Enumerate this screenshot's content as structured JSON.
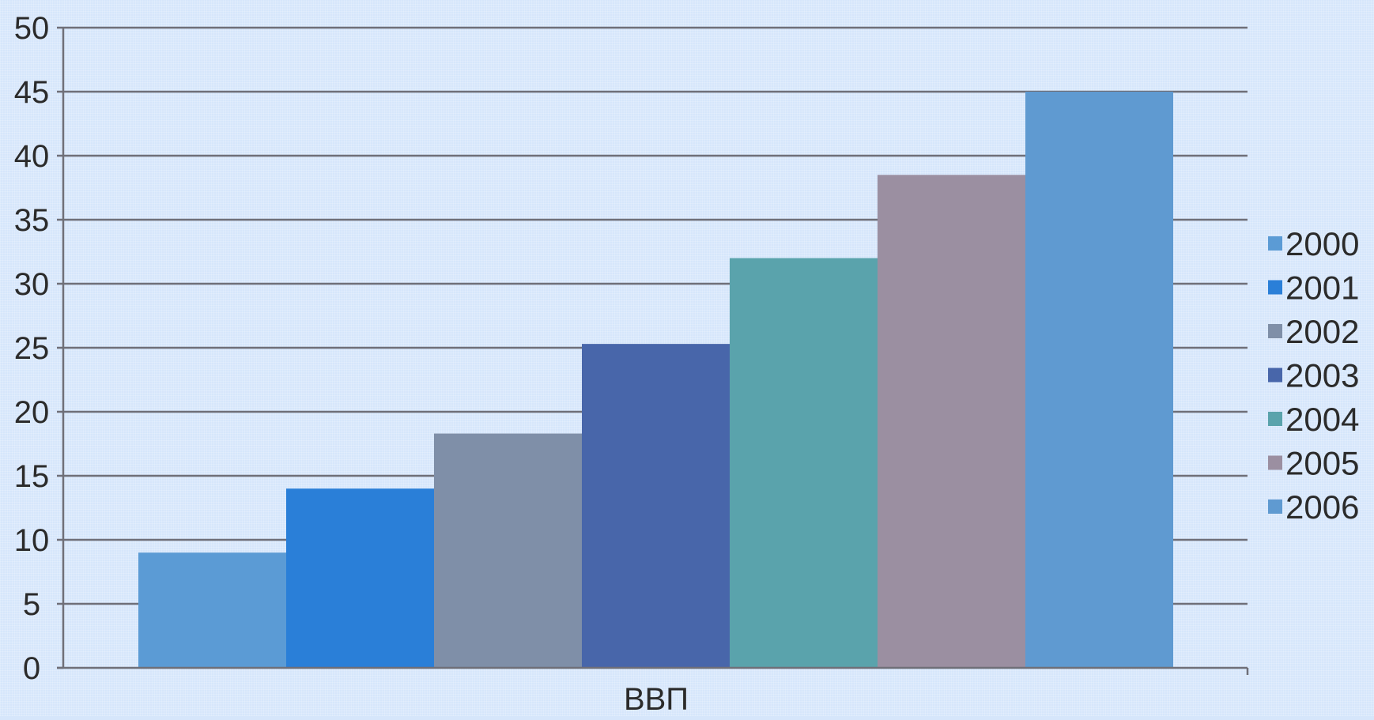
{
  "chart_data": {
    "type": "bar",
    "title": "",
    "xlabel": "",
    "ylabel": "",
    "categories": [
      "ВВП"
    ],
    "series": [
      {
        "name": "2000",
        "values": [
          9
        ],
        "color": "#5b9bd5"
      },
      {
        "name": "2001",
        "values": [
          14
        ],
        "color": "#2a7fd8"
      },
      {
        "name": "2002",
        "values": [
          18.3
        ],
        "color": "#7f8fa8"
      },
      {
        "name": "2003",
        "values": [
          25.3
        ],
        "color": "#4866aa"
      },
      {
        "name": "2004",
        "values": [
          32
        ],
        "color": "#5aa3ac"
      },
      {
        "name": "2005",
        "values": [
          38.5
        ],
        "color": "#9b8fa1"
      },
      {
        "name": "2006",
        "values": [
          45
        ],
        "color": "#5f9ad1"
      }
    ],
    "ylim": [
      0,
      50
    ],
    "yticks": [
      "0",
      "5",
      "10",
      "15",
      "20",
      "25",
      "30",
      "35",
      "40",
      "45",
      "50"
    ],
    "grid": true,
    "legend_position": "right"
  }
}
